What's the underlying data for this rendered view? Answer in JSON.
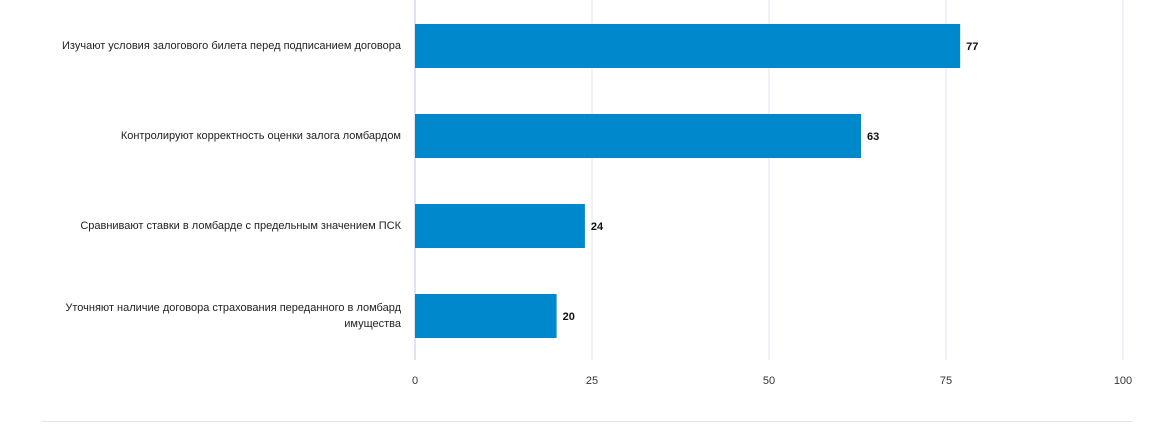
{
  "chart_data": {
    "type": "bar",
    "orientation": "horizontal",
    "title": "",
    "xlabel": "",
    "ylabel": "",
    "categories": [
      "Изучают условия залогового билета перед подписанием договора",
      "Контролируют корректность оценки залога ломбардом",
      "Сравнивают ставки в ломбарде с предельным значением ПСК",
      "Уточняют наличие договора страхования переданного в ломбард имущества"
    ],
    "values": [
      77,
      63,
      24,
      20
    ],
    "value_labels": [
      "77",
      "63",
      "24",
      "20"
    ],
    "xlim": [
      0,
      100
    ],
    "xticks": [
      0,
      25,
      50,
      75,
      100
    ],
    "xtick_labels": [
      "0",
      "25",
      "50",
      "75",
      "100"
    ],
    "grid": true,
    "legend": "none",
    "bar_color": "#0088cc",
    "grid_color": "#e2e0ee",
    "axis_color": "#c9c4e0"
  }
}
